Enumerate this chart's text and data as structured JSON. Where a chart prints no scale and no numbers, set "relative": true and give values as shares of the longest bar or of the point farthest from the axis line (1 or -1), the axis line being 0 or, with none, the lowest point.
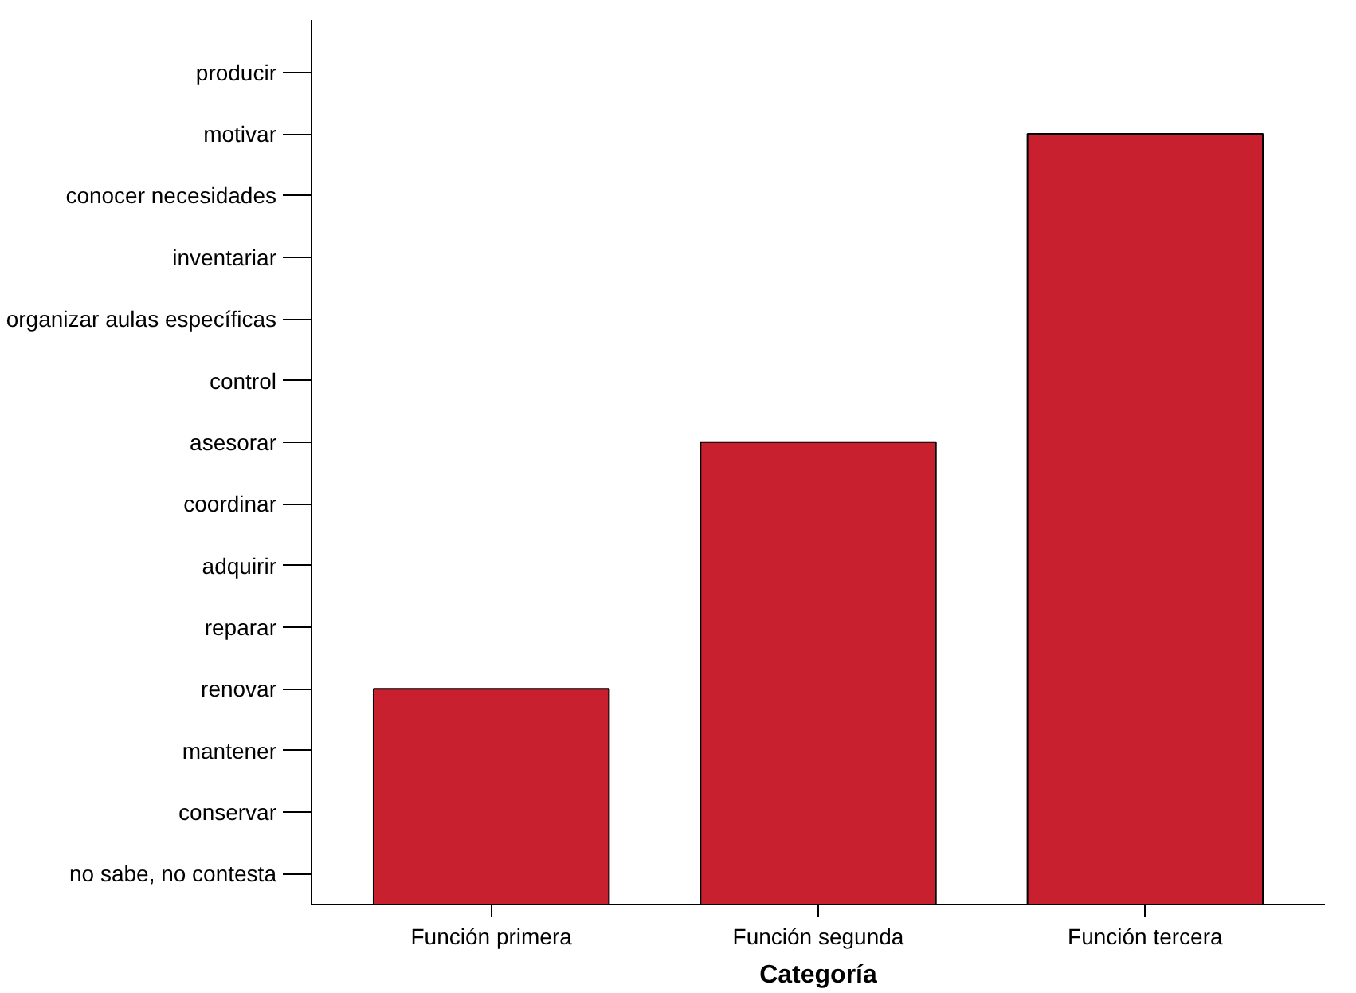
{
  "chart_data": {
    "type": "bar",
    "xlabel": "Categoría",
    "relative": true,
    "categories": [
      "Función primera",
      "Función segunda",
      "Función tercera"
    ],
    "values": [
      0.28,
      0.6,
      1
    ],
    "color": "#c8202f",
    "annotations": [
      "no sabe, no contesta",
      "conservar",
      "mantener",
      "renovar",
      "reparar",
      "adquirir",
      "coordinar",
      "asesorar",
      "control",
      "organizar aulas específicas",
      "inventariar",
      "conocer necesidades",
      "motivar",
      "producir"
    ],
    "grid": false
  }
}
